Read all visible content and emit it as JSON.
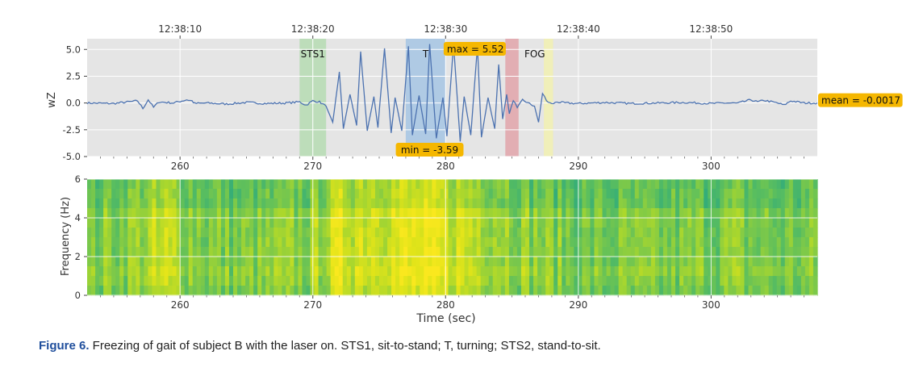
{
  "figure_caption": {
    "label": "Figure 6.",
    "text": " Freezing of gait of subject B with the laser on. STS1, sit-to-stand; T, turning; STS2, stand-to-sit."
  },
  "colors": {
    "signal": "#4c72b0",
    "panel_background": "#e5e5e5",
    "STS1": "#b8dbb5",
    "T": "#a9c6e3",
    "FOG": "#e1a7ad",
    "STS2": "#f1efb4",
    "annotation_box": "#f5b700"
  },
  "chart_data": [
    {
      "type": "line",
      "ylabel": "wZ",
      "xlim": [
        253,
        308
      ],
      "ylim": [
        -5.0,
        6.0
      ],
      "yticks": [
        "-5.0",
        "-2.5",
        "0.0",
        "2.5",
        "5.0"
      ],
      "xticks": [
        "260",
        "270",
        "280",
        "290",
        "300"
      ],
      "top_axis_ticks": [
        "12:38:10",
        "12:38:20",
        "12:38:30",
        "12:38:40",
        "12:38:50"
      ],
      "grid": true,
      "regions": [
        {
          "label": "STS1",
          "start": 269.0,
          "end": 271.0
        },
        {
          "label": "T",
          "start": 277.0,
          "end": 280.0
        },
        {
          "label": "FOG",
          "start": 284.5,
          "end": 285.5
        },
        {
          "label": "",
          "start": 287.4,
          "end": 288.1
        }
      ],
      "annotations": {
        "max": "max = 5.52",
        "min": "min = -3.59",
        "mean": "mean = -0.0017"
      },
      "series": [
        {
          "x": [
            253.0,
            255.0,
            256.8,
            257.2,
            257.6,
            258.0,
            258.4,
            259.5,
            260.5,
            260.9,
            261.1,
            262.0,
            263.5,
            265.0,
            266.5,
            268.0,
            269.0,
            269.5,
            270.0,
            270.5,
            271.0,
            271.5,
            272.0,
            272.3,
            272.8,
            273.3,
            273.6,
            274.1,
            274.6,
            274.9,
            275.4,
            275.9,
            276.2,
            276.7,
            277.2,
            277.5,
            278.0,
            278.5,
            278.8,
            279.3,
            279.8,
            280.1,
            280.6,
            281.1,
            281.4,
            281.9,
            282.4,
            282.7,
            283.2,
            283.7,
            284.0,
            284.3,
            284.6,
            284.8,
            285.1,
            285.4,
            285.8,
            286.2,
            286.7,
            287.0,
            287.3,
            287.6,
            288.0,
            288.4,
            289.0,
            290.0,
            292.0,
            294.0,
            296.0,
            298.0,
            300.0,
            301.0,
            302.0,
            303.0,
            303.5,
            304.0,
            305.0,
            305.5,
            306.0,
            307.0,
            308.0
          ],
          "y": [
            0.0,
            -0.05,
            0.2,
            -0.5,
            0.3,
            -0.4,
            0.1,
            0.0,
            0.3,
            0.2,
            -0.05,
            0.0,
            -0.1,
            0.05,
            -0.05,
            0.0,
            0.1,
            -0.2,
            0.2,
            0.1,
            -0.3,
            -1.8,
            2.9,
            -2.4,
            0.8,
            -2.1,
            4.8,
            -2.6,
            0.6,
            -2.3,
            5.1,
            -2.8,
            0.5,
            -2.6,
            5.3,
            -3.0,
            0.7,
            -2.9,
            5.5,
            -3.3,
            0.5,
            -3.1,
            5.52,
            -3.59,
            0.6,
            -3.0,
            5.3,
            -3.2,
            0.5,
            -2.4,
            3.6,
            -1.5,
            0.8,
            -1.0,
            0.3,
            -0.5,
            0.3,
            0.0,
            -0.3,
            -1.8,
            0.9,
            0.2,
            -0.1,
            0.1,
            0.0,
            -0.05,
            0.05,
            -0.05,
            0.0,
            0.05,
            -0.05,
            0.0,
            -0.02,
            0.3,
            0.1,
            0.25,
            0.0,
            -0.2,
            0.2,
            0.0,
            0.0
          ]
        }
      ]
    },
    {
      "type": "heatmap",
      "xlabel": "Time (sec)",
      "ylabel": "Frequency (Hz)",
      "xlim": [
        253,
        308
      ],
      "ylim": [
        0,
        6
      ],
      "xticks": [
        "260",
        "270",
        "280",
        "290",
        "300"
      ],
      "yticks": [
        "0",
        "2",
        "4",
        "6"
      ],
      "grid": true,
      "colormap": "viridis-upper (green to yellow)",
      "intensity_profile": {
        "time": [
          253,
          256,
          259,
          262,
          265,
          268,
          270,
          272,
          275,
          278,
          280,
          283,
          286,
          288,
          290,
          294,
          298,
          302,
          305,
          308
        ],
        "level": [
          0.45,
          0.55,
          0.7,
          0.5,
          0.45,
          0.5,
          0.55,
          0.8,
          0.85,
          0.85,
          0.8,
          0.7,
          0.55,
          0.5,
          0.45,
          0.45,
          0.45,
          0.5,
          0.45,
          0.45
        ]
      }
    }
  ]
}
